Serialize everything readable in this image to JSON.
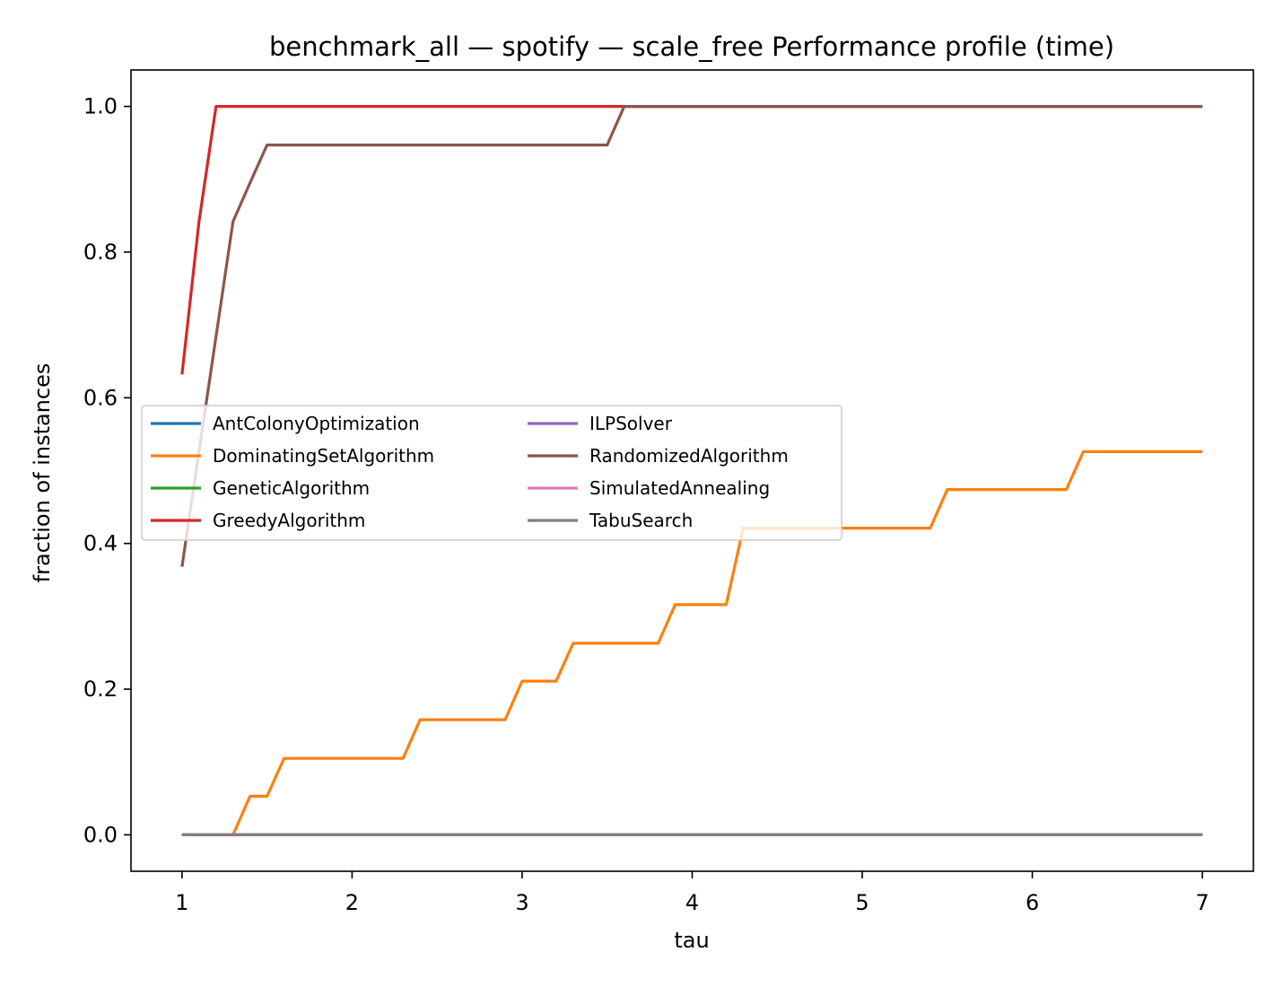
{
  "chart_data": {
    "type": "line",
    "title": "benchmark_all — spotify — scale_free Performance profile (time)",
    "xlabel": "tau",
    "ylabel": "fraction of instances",
    "xlim": [
      0.7,
      7.3
    ],
    "ylim": [
      -0.05,
      1.05
    ],
    "xticks": [
      1,
      2,
      3,
      4,
      5,
      6,
      7
    ],
    "yticks": [
      0.0,
      0.2,
      0.4,
      0.6,
      0.8,
      1.0
    ],
    "ytick_labels": [
      "0.0",
      "0.2",
      "0.4",
      "0.6",
      "0.8",
      "1.0"
    ],
    "grid": false,
    "legend_position": "center-left",
    "legend_columns": 2,
    "series": [
      {
        "name": "AntColonyOptimization",
        "color": "#1f77b4",
        "points": [
          [
            1,
            0
          ],
          [
            7,
            0
          ]
        ]
      },
      {
        "name": "DominatingSetAlgorithm",
        "color": "#ff7f0e",
        "points": [
          [
            1,
            0
          ],
          [
            1.3,
            0
          ],
          [
            1.4,
            0.053
          ],
          [
            1.5,
            0.053
          ],
          [
            1.6,
            0.105
          ],
          [
            2.3,
            0.105
          ],
          [
            2.4,
            0.158
          ],
          [
            2.9,
            0.158
          ],
          [
            3.0,
            0.211
          ],
          [
            3.2,
            0.211
          ],
          [
            3.3,
            0.263
          ],
          [
            3.8,
            0.263
          ],
          [
            3.9,
            0.316
          ],
          [
            4.2,
            0.316
          ],
          [
            4.3,
            0.421
          ],
          [
            5.4,
            0.421
          ],
          [
            5.5,
            0.474
          ],
          [
            6.2,
            0.474
          ],
          [
            6.3,
            0.526
          ],
          [
            7,
            0.526
          ]
        ]
      },
      {
        "name": "GeneticAlgorithm",
        "color": "#2ca02c",
        "points": [
          [
            1,
            0
          ],
          [
            7,
            0
          ]
        ]
      },
      {
        "name": "GreedyAlgorithm",
        "color": "#d62728",
        "points": [
          [
            1,
            0.632
          ],
          [
            1.1,
            0.842
          ],
          [
            1.2,
            1.0
          ],
          [
            7,
            1.0
          ]
        ]
      },
      {
        "name": "ILPSolver",
        "color": "#9467bd",
        "points": [
          [
            1,
            0
          ],
          [
            7,
            0
          ]
        ]
      },
      {
        "name": "RandomizedAlgorithm",
        "color": "#8c564b",
        "points": [
          [
            1,
            0.368
          ],
          [
            1.1,
            0.526
          ],
          [
            1.2,
            0.684
          ],
          [
            1.3,
            0.842
          ],
          [
            1.4,
            0.895
          ],
          [
            1.5,
            0.947
          ],
          [
            3.5,
            0.947
          ],
          [
            3.6,
            1.0
          ],
          [
            7,
            1.0
          ]
        ]
      },
      {
        "name": "SimulatedAnnealing",
        "color": "#e377c2",
        "points": [
          [
            1,
            0
          ],
          [
            7,
            0
          ]
        ]
      },
      {
        "name": "TabuSearch",
        "color": "#7f7f7f",
        "points": [
          [
            1,
            0
          ],
          [
            7,
            0
          ]
        ]
      }
    ]
  }
}
